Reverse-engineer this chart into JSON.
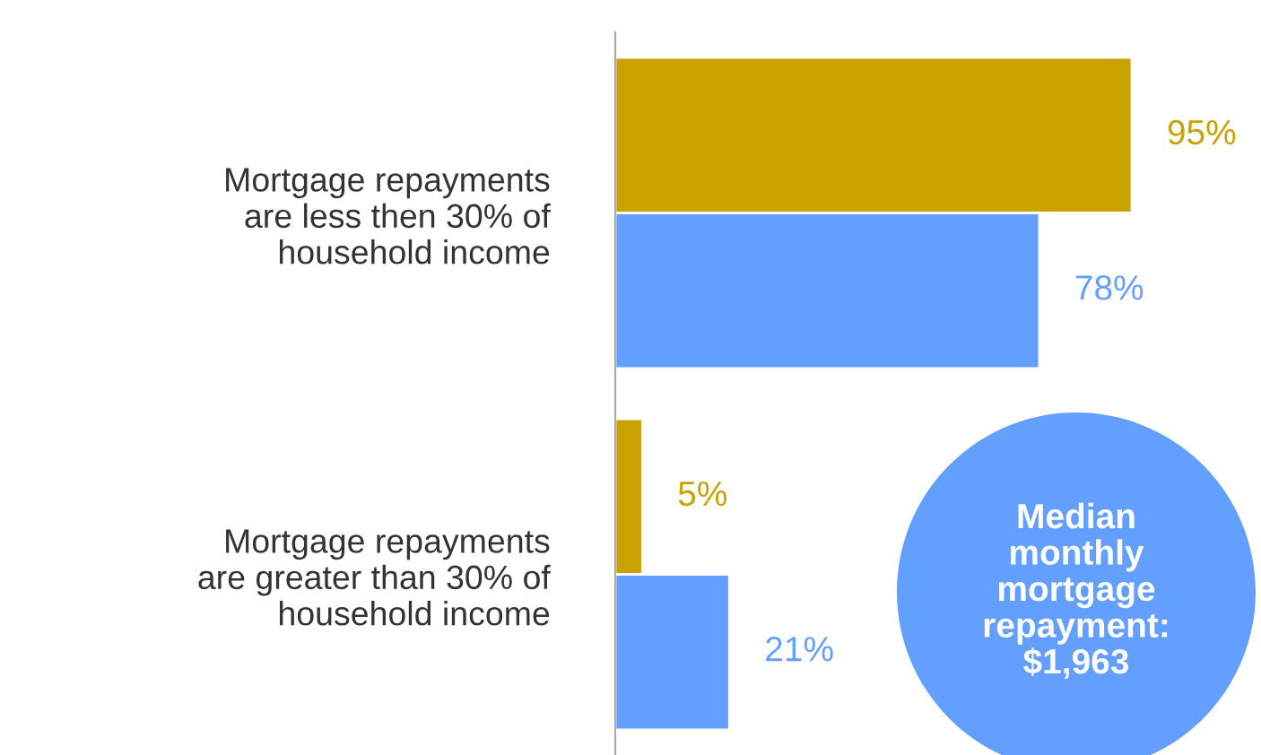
{
  "chart_data": {
    "type": "bar",
    "orientation": "horizontal",
    "categories": [
      "Mortgage repayments\nare less then 30% of\nhousehold income",
      "Mortgage repayments\nare greater than 30% of\nhousehold income"
    ],
    "series": [
      {
        "color": "#c9a200",
        "values": [
          95,
          5
        ],
        "value_labels": [
          "95%",
          "5%"
        ]
      },
      {
        "color": "#629fff",
        "values": [
          78,
          21
        ],
        "value_labels": [
          "78%",
          "21%"
        ]
      }
    ],
    "annotations": [
      "Median\nmonthly\nmortgage\nrepayment:\n$1,963"
    ],
    "grid": false,
    "legend": false
  }
}
